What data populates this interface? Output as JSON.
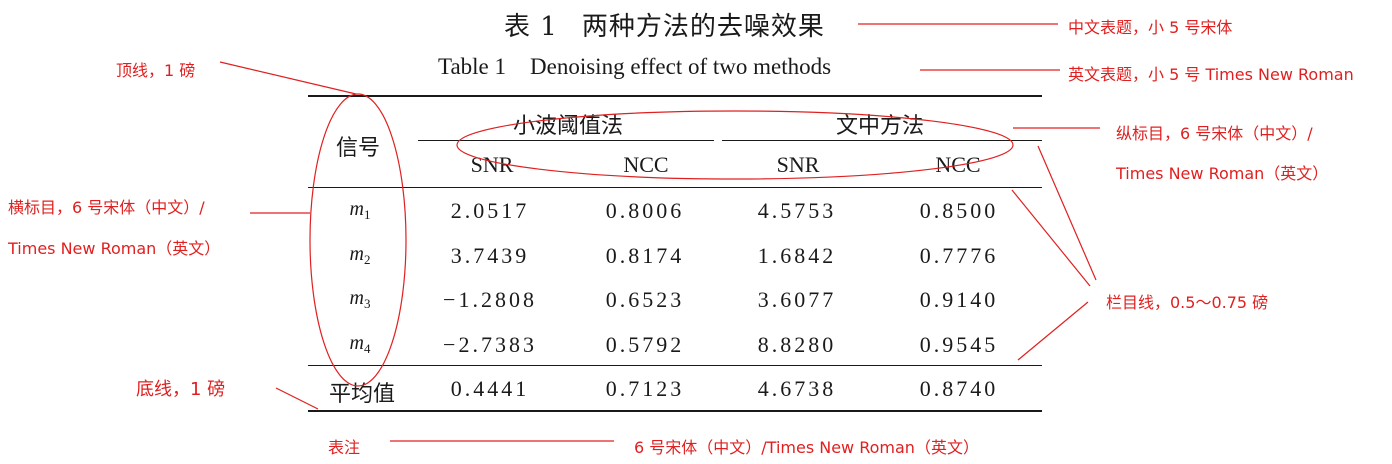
{
  "table": {
    "title_cn_label": "表 1",
    "title_cn_text": "两种方法的去噪效果",
    "title_en_label": "Table 1",
    "title_en_text": "Denoising effect of two methods",
    "stub_header": "信号",
    "groups": [
      "小波阈值法",
      "文中方法"
    ],
    "subheaders": [
      "SNR",
      "NCC",
      "SNR",
      "NCC"
    ],
    "rows": [
      {
        "base": "m",
        "sub": "1",
        "values": [
          "2.0517",
          "0.8006",
          "4.5753",
          "0.8500"
        ]
      },
      {
        "base": "m",
        "sub": "2",
        "values": [
          "3.7439",
          "0.8174",
          "1.6842",
          "0.7776"
        ]
      },
      {
        "base": "m",
        "sub": "3",
        "values": [
          "−1.2808",
          "0.6523",
          "3.6077",
          "0.9140"
        ]
      },
      {
        "base": "m",
        "sub": "4",
        "values": [
          "−2.7383",
          "0.5792",
          "8.8280",
          "0.9545"
        ]
      }
    ],
    "average": {
      "label": "平均值",
      "values": [
        "0.4441",
        "0.7123",
        "4.6738",
        "0.8740"
      ]
    }
  },
  "annotations": {
    "title_cn_note": "中文表题，小 5 号宋体",
    "title_en_note": "英文表题，小 5 号 Times New Roman",
    "top_rule_note": "顶线，1 磅",
    "column_head_note_line1": "纵标目，6 号宋体（中文）/",
    "column_head_note_line2": "Times New Roman（英文）",
    "row_head_note_line1": "横标目，6 号宋体（中文）/",
    "row_head_note_line2": "Times New Roman（英文）",
    "column_rule_note": "栏目线，0.5～0.75 磅",
    "bottom_rule_note": "底线，1 磅",
    "table_note_label": "表注",
    "table_note_text": "6 号宋体（中文）/Times New Roman（英文）"
  },
  "colors": {
    "annotation": "#e02020",
    "text": "#1a1a1a",
    "rules": "#1a1a1a"
  }
}
